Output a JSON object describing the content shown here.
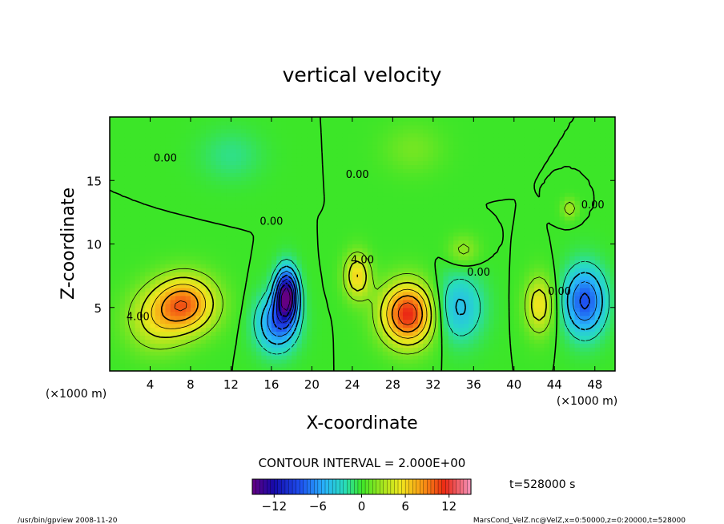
{
  "chart_data": {
    "type": "heatmap",
    "title": "vertical velocity",
    "xlabel": "X-coordinate",
    "ylabel": "Z-coordinate",
    "x_unit_left": "(×1000 m)",
    "x_unit_right": "(×1000 m)",
    "xlim": [
      0,
      50
    ],
    "ylim": [
      0,
      20
    ],
    "x_ticks": [
      4,
      8,
      12,
      16,
      20,
      24,
      28,
      32,
      36,
      40,
      44,
      48
    ],
    "y_ticks": [
      5,
      10,
      15
    ],
    "contour_interval_text": "CONTOUR INTERVAL = 2.000E+00",
    "time_text": "t=528000 s",
    "contour_labels": [
      {
        "text": "0.00",
        "x": 5.5,
        "y": 16.5
      },
      {
        "text": "0.00",
        "x": 24.5,
        "y": 15.2
      },
      {
        "text": "0.00",
        "x": 16.0,
        "y": 11.5
      },
      {
        "text": "0.00",
        "x": 36.5,
        "y": 7.5
      },
      {
        "text": "0.00",
        "x": 44.5,
        "y": 6.0
      },
      {
        "text": "4.00",
        "x": 2.8,
        "y": 4.0
      },
      {
        "text": "4.00",
        "x": 25.0,
        "y": 8.5
      },
      {
        "text": "0.00",
        "x": 47.8,
        "y": 12.8
      }
    ],
    "field_features": [
      {
        "x": 7.5,
        "z": 5.3,
        "value": 9.0,
        "sx": 3.0,
        "sz": 2.2
      },
      {
        "x": 4.5,
        "z": 4.0,
        "value": 4.0,
        "sx": 3.0,
        "sz": 2.5
      },
      {
        "x": 17.5,
        "z": 6.0,
        "value": -14.0,
        "sx": 1.1,
        "sz": 2.0
      },
      {
        "x": 16.5,
        "z": 3.8,
        "value": -7.0,
        "sx": 2.0,
        "sz": 2.2
      },
      {
        "x": 29.5,
        "z": 4.5,
        "value": 11.5,
        "sx": 2.6,
        "sz": 2.4
      },
      {
        "x": 24.5,
        "z": 7.5,
        "value": 6.0,
        "sx": 1.3,
        "sz": 1.8
      },
      {
        "x": 34.5,
        "z": 5.0,
        "value": -4.5,
        "sx": 2.4,
        "sz": 2.6
      },
      {
        "x": 42.5,
        "z": 5.2,
        "value": 5.5,
        "sx": 1.4,
        "sz": 2.2
      },
      {
        "x": 47.0,
        "z": 5.5,
        "value": -8.5,
        "sx": 2.0,
        "sz": 2.6
      },
      {
        "x": 35.0,
        "z": 9.5,
        "value": 2.5,
        "sx": 1.5,
        "sz": 1.2
      },
      {
        "x": 45.5,
        "z": 12.8,
        "value": 3.0,
        "sx": 0.8,
        "sz": 0.8
      },
      {
        "x": 12.0,
        "z": 17.0,
        "value": -1.5,
        "sx": 3.0,
        "sz": 2.0
      },
      {
        "x": 30.0,
        "z": 17.5,
        "value": 1.5,
        "sx": 3.0,
        "sz": 2.0
      }
    ],
    "colorbar": {
      "min": -15,
      "max": 15,
      "tick_values": [
        -12,
        -6,
        0,
        6,
        12
      ],
      "tick_labels": [
        "−12",
        "−6",
        "0",
        "6",
        "12"
      ]
    }
  },
  "footer": {
    "left": "/usr/bin/gpview   2008-11-20",
    "right": "MarsCond_VelZ.nc@VelZ,x=0:50000,z=0:20000,t=528000"
  }
}
